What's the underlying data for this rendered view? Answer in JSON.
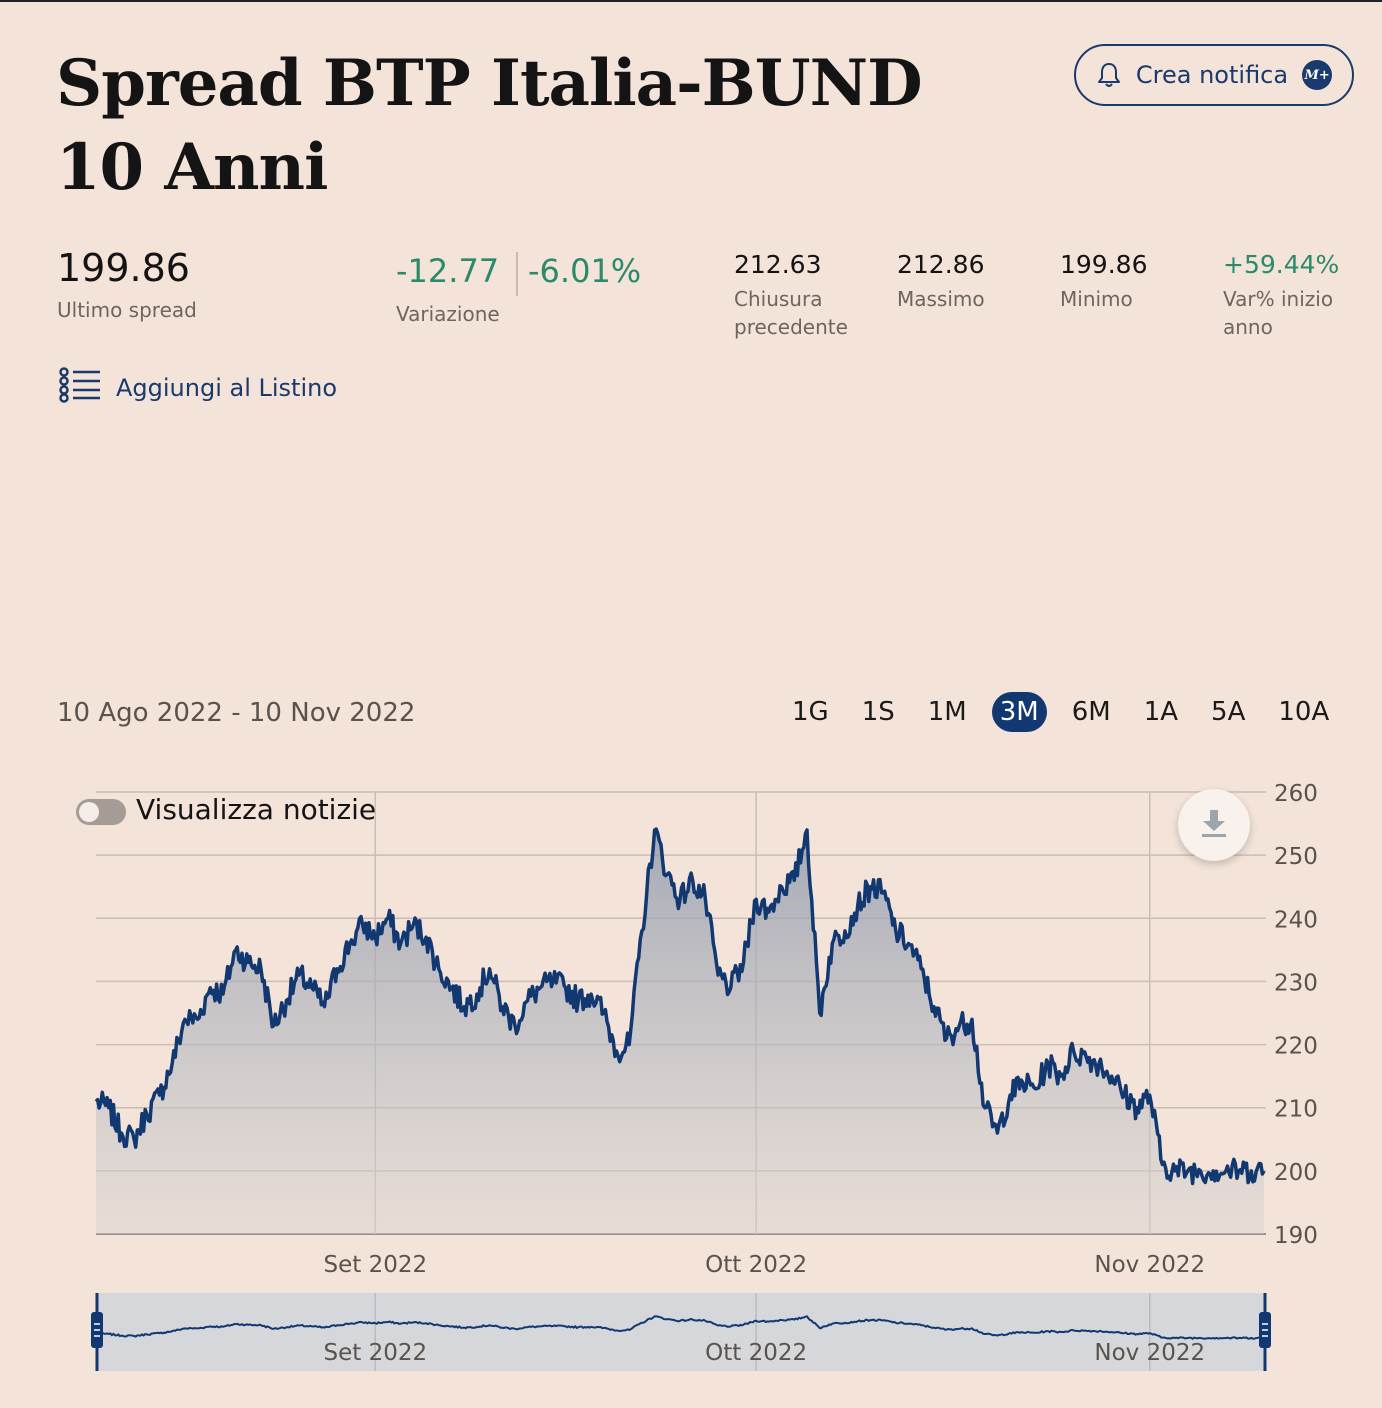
{
  "header": {
    "title": "Spread BTP Italia-BUND 10 Anni",
    "notify_label": "Crea notifica",
    "notify_badge": "M+"
  },
  "stats": {
    "last_value": "199.86",
    "last_label": "Ultimo spread",
    "change_abs": "-12.77",
    "change_pct": "-6.01%",
    "change_label": "Variazione",
    "prev_close": "212.63",
    "prev_close_label_1": "Chiusura",
    "prev_close_label_2": "precedente",
    "high": "212.86",
    "high_label": "Massimo",
    "low": "199.86",
    "low_label": "Minimo",
    "ytd": "+59.44%",
    "ytd_label_1": "Var% inizio",
    "ytd_label_2": "anno"
  },
  "watchlist_label": "Aggiungi al Listino",
  "date_range": "10 Ago 2022 - 10 Nov 2022",
  "periods": [
    "1G",
    "1S",
    "1M",
    "3M",
    "6M",
    "1A",
    "5A",
    "10A"
  ],
  "active_period": "3M",
  "news_toggle_label": "Visualizza notizie",
  "colors": {
    "background": "#f3e3d8",
    "line": "#123872",
    "positive": "#2a8a6a",
    "accent": "#1a3a6e"
  },
  "chart_data": {
    "type": "area",
    "title": "",
    "xlabel": "",
    "ylabel": "",
    "ylim": [
      190,
      260
    ],
    "yticks": [
      190,
      200,
      210,
      220,
      230,
      240,
      250,
      260
    ],
    "y_axis_side": "right",
    "grid": true,
    "xlim": [
      "2022-08-10",
      "2022-11-10"
    ],
    "x_tick_dates": [
      "2022-09-01",
      "2022-10-01",
      "2022-11-01"
    ],
    "x_tick_labels": [
      "Set 2022",
      "Ott 2022",
      "Nov 2022"
    ],
    "navigator": true,
    "series": [
      {
        "x": [
          "2022-08-10",
          "2022-08-11",
          "2022-08-12",
          "2022-08-13",
          "2022-08-14",
          "2022-08-15",
          "2022-08-16",
          "2022-08-17",
          "2022-08-18",
          "2022-08-19",
          "2022-08-20",
          "2022-08-21",
          "2022-08-22",
          "2022-08-23",
          "2022-08-24",
          "2022-08-25",
          "2022-08-26",
          "2022-08-27",
          "2022-08-28",
          "2022-08-29",
          "2022-08-30",
          "2022-08-31",
          "2022-09-01",
          "2022-09-02",
          "2022-09-03",
          "2022-09-04",
          "2022-09-05",
          "2022-09-06",
          "2022-09-07",
          "2022-09-08",
          "2022-09-09",
          "2022-09-10",
          "2022-09-11",
          "2022-09-12",
          "2022-09-13",
          "2022-09-14",
          "2022-09-15",
          "2022-09-16",
          "2022-09-17",
          "2022-09-18",
          "2022-09-19",
          "2022-09-20",
          "2022-09-21",
          "2022-09-22",
          "2022-09-23",
          "2022-09-24",
          "2022-09-25",
          "2022-09-26",
          "2022-09-27",
          "2022-09-28",
          "2022-09-29",
          "2022-09-30",
          "2022-10-01",
          "2022-10-02",
          "2022-10-03",
          "2022-10-04",
          "2022-10-05",
          "2022-10-06",
          "2022-10-07",
          "2022-10-08",
          "2022-10-09",
          "2022-10-10",
          "2022-10-11",
          "2022-10-12",
          "2022-10-13",
          "2022-10-14",
          "2022-10-15",
          "2022-10-16",
          "2022-10-17",
          "2022-10-18",
          "2022-10-19",
          "2022-10-20",
          "2022-10-21",
          "2022-10-22",
          "2022-10-23",
          "2022-10-24",
          "2022-10-25",
          "2022-10-26",
          "2022-10-27",
          "2022-10-28",
          "2022-10-29",
          "2022-10-30",
          "2022-10-31",
          "2022-11-01",
          "2022-11-02",
          "2022-11-03",
          "2022-11-04",
          "2022-11-05",
          "2022-11-06",
          "2022-11-07",
          "2022-11-08",
          "2022-11-09",
          "2022-11-10"
        ],
        "values": [
          211,
          210,
          206,
          205,
          209,
          212,
          217,
          224,
          224,
          229,
          228,
          235,
          233,
          232,
          223,
          227,
          231,
          229,
          226,
          232,
          236,
          239,
          237,
          240,
          236,
          239,
          237,
          232,
          229,
          226,
          228,
          232,
          226,
          223,
          227,
          229,
          230,
          229,
          227,
          228,
          225,
          219,
          220,
          238,
          254,
          247,
          243,
          246,
          243,
          231,
          229,
          233,
          243,
          241,
          245,
          246,
          254,
          225,
          236,
          238,
          242,
          245,
          244,
          238,
          236,
          232,
          226,
          221,
          223,
          224,
          210,
          206,
          212,
          214,
          213,
          217,
          215,
          219,
          218,
          217,
          215,
          212,
          210,
          212,
          201,
          200,
          200,
          200,
          200,
          200,
          200,
          200,
          200
        ]
      }
    ]
  }
}
